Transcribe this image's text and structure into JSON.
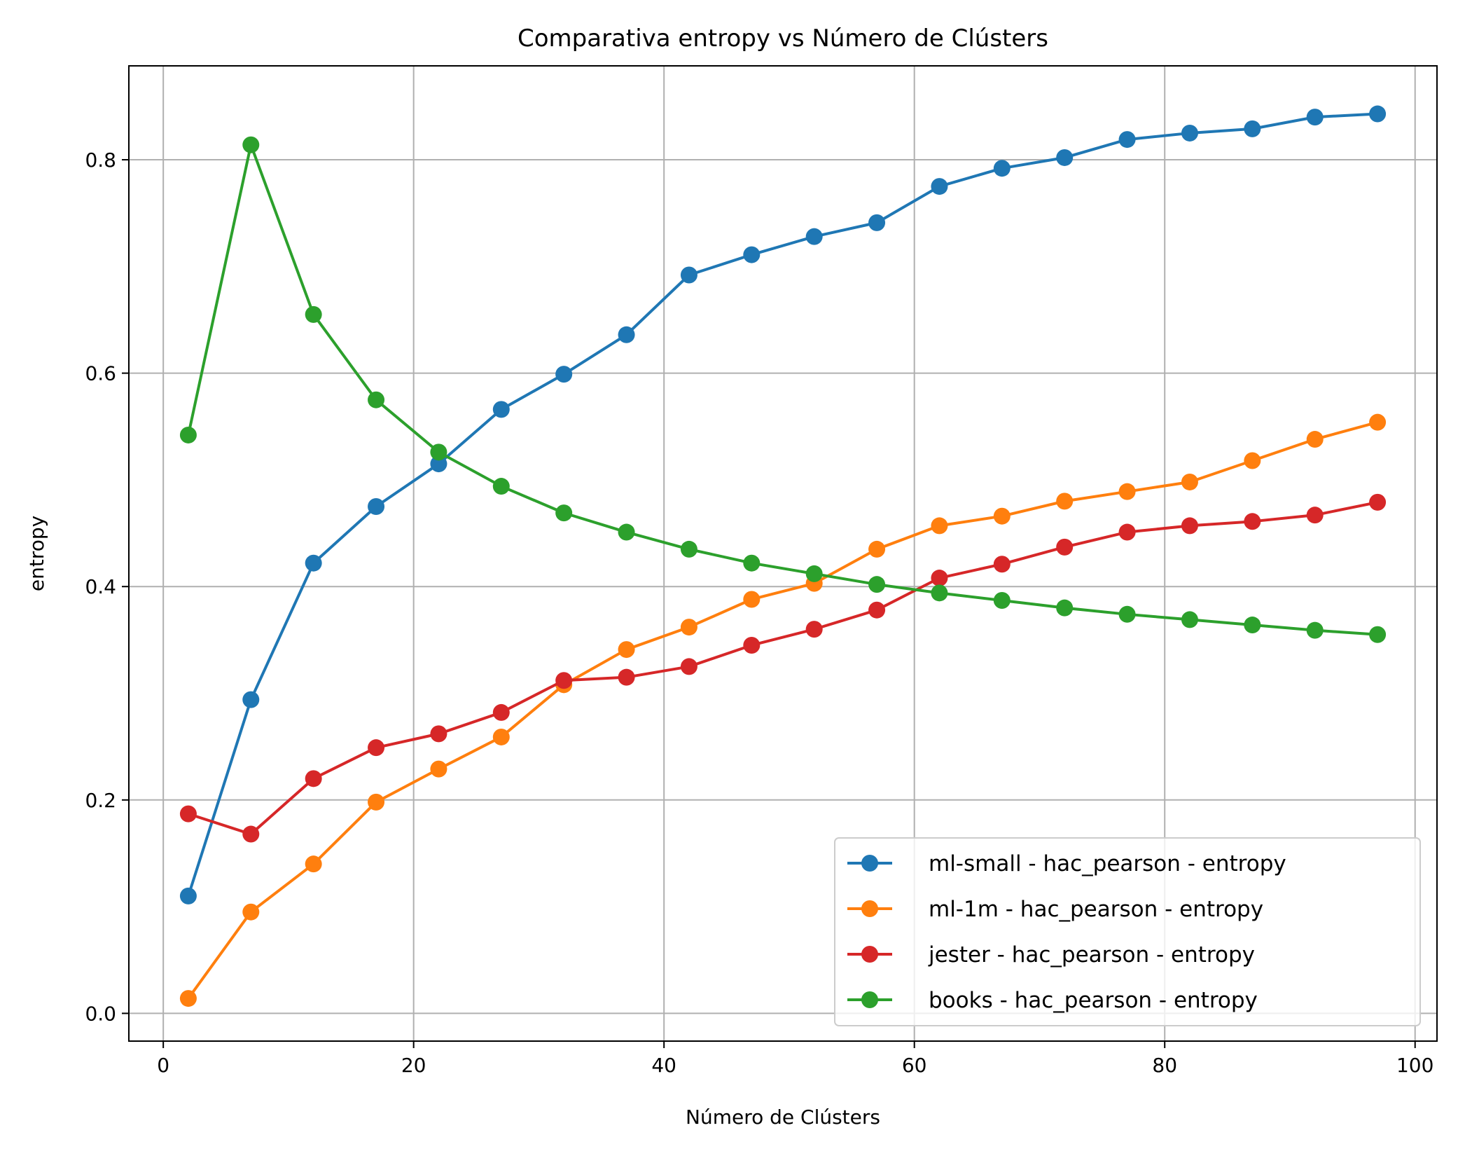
{
  "chart_data": {
    "type": "line",
    "title": "Comparativa entropy vs Número de Clústers",
    "xlabel": "Número de Clústers",
    "ylabel": "entropy",
    "xlim": [
      -2.75,
      101.75
    ],
    "ylim": [
      -0.026,
      0.888
    ],
    "xticks": [
      0,
      20,
      40,
      60,
      80,
      100
    ],
    "yticks": [
      0.0,
      0.2,
      0.4,
      0.6,
      0.8
    ],
    "xtick_labels": [
      "0",
      "20",
      "40",
      "60",
      "80",
      "100"
    ],
    "ytick_labels": [
      "0.0",
      "0.2",
      "0.4",
      "0.6",
      "0.8"
    ],
    "grid": true,
    "legend_position": "lower-right",
    "marker": "circle",
    "x": [
      2,
      7,
      12,
      17,
      22,
      27,
      32,
      37,
      42,
      47,
      52,
      57,
      62,
      67,
      72,
      77,
      82,
      87,
      92,
      97
    ],
    "series": [
      {
        "name": "ml-small - hac_pearson - entropy",
        "color": "#1f77b4",
        "values": [
          0.11,
          0.294,
          0.422,
          0.475,
          0.515,
          0.566,
          0.599,
          0.636,
          0.692,
          0.711,
          0.728,
          0.741,
          0.775,
          0.792,
          0.802,
          0.819,
          0.825,
          0.829,
          0.84,
          0.843
        ]
      },
      {
        "name": "ml-1m - hac_pearson - entropy",
        "color": "#ff7f0e",
        "values": [
          0.014,
          0.095,
          0.14,
          0.198,
          0.229,
          0.259,
          0.308,
          0.341,
          0.362,
          0.388,
          0.403,
          0.435,
          0.457,
          0.466,
          0.48,
          0.489,
          0.498,
          0.518,
          0.538,
          0.554
        ]
      },
      {
        "name": "jester - hac_pearson - entropy",
        "color": "#d62728",
        "values": [
          0.187,
          0.168,
          0.22,
          0.249,
          0.262,
          0.282,
          0.312,
          0.315,
          0.325,
          0.345,
          0.36,
          0.378,
          0.408,
          0.421,
          0.437,
          0.451,
          0.457,
          0.461,
          0.467,
          0.479
        ]
      },
      {
        "name": "books - hac_pearson - entropy",
        "color": "#2ca02c",
        "values": [
          0.542,
          0.814,
          0.655,
          0.575,
          0.526,
          0.494,
          0.469,
          0.451,
          0.435,
          0.422,
          0.412,
          0.402,
          0.394,
          0.387,
          0.38,
          0.374,
          0.369,
          0.364,
          0.359,
          0.355
        ]
      }
    ]
  }
}
